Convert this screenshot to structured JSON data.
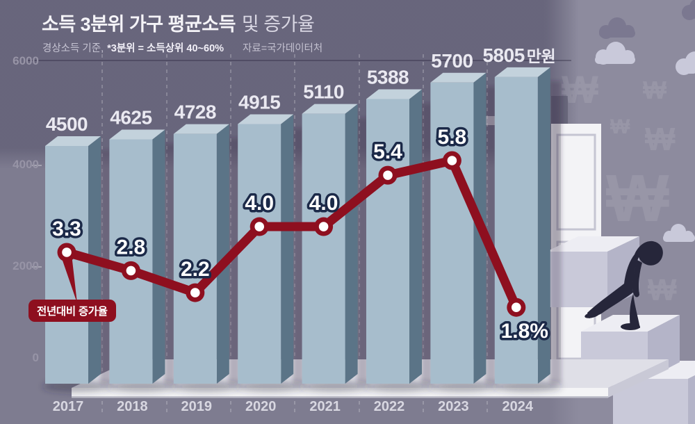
{
  "title": {
    "main": "소득 3분위 가구 평균소득",
    "rest": "및 증가율"
  },
  "subtitle": {
    "base": "경상소득 기준,",
    "bold": "*3분위 = 소득상위 40~60%",
    "source": "자료=국가데이터처"
  },
  "y_axis": {
    "labels": [
      "6000",
      "4000",
      "2000",
      "0"
    ]
  },
  "callout": {
    "label": "전년대비 증가율"
  },
  "chart_data": {
    "type": "combo",
    "title": "소득 3분위 가구 평균소득 및 증가율",
    "categories": [
      "2017",
      "2018",
      "2019",
      "2020",
      "2021",
      "2022",
      "2023",
      "2024"
    ],
    "series": [
      {
        "name": "가구 평균소득",
        "type": "bar",
        "unit": "만원",
        "values": [
          4500,
          4625,
          4728,
          4915,
          5110,
          5388,
          5700,
          5805
        ],
        "labels": [
          "4500",
          "4625",
          "4728",
          "4915",
          "5110",
          "5388",
          "5700",
          "5805"
        ],
        "last_label_unit": "만원"
      },
      {
        "name": "전년대비 증가율",
        "type": "line",
        "unit": "%",
        "values": [
          3.3,
          2.8,
          2.2,
          4.0,
          4.0,
          5.4,
          5.8,
          1.8
        ],
        "labels": [
          "3.3",
          "2.8",
          "2.2",
          "4.0",
          "4.0",
          "5.4",
          "5.8",
          "1.8%"
        ]
      }
    ],
    "ylim_bar": [
      0,
      6000
    ],
    "grid": "6000 line solid, category separators dashed"
  },
  "decor": {
    "won": "₩"
  },
  "colors": {
    "accent_red": "#8E0F1F",
    "bar_front": "#A7BDCC",
    "bar_top": "#C3D2DC",
    "bar_side": "#5B7487",
    "wall": "#8D8B9E",
    "label_navy": "#1B2948",
    "platform": "#F4F4F6",
    "value_label": "#EAE9F1"
  }
}
